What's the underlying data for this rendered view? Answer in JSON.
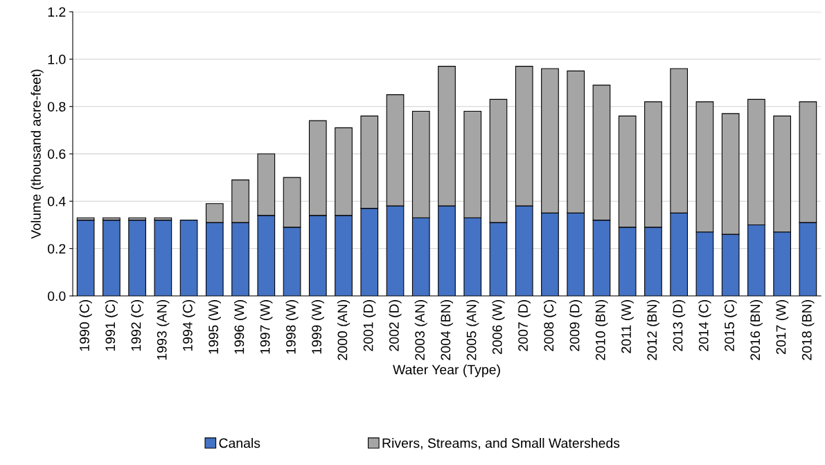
{
  "chart_data": {
    "type": "bar",
    "stacked": true,
    "xlabel": "Water Year (Type)",
    "ylabel": "Volume (thousand acre-feet)",
    "categories": [
      "1990 (C)",
      "1991 (C)",
      "1992 (C)",
      "1993 (AN)",
      "1994 (C)",
      "1995 (W)",
      "1996 (W)",
      "1997 (W)",
      "1998 (W)",
      "1999 (W)",
      "2000 (AN)",
      "2001 (D)",
      "2002 (D)",
      "2003 (AN)",
      "2004 (BN)",
      "2005 (AN)",
      "2006 (W)",
      "2007 (D)",
      "2008 (C)",
      "2009 (D)",
      "2010 (BN)",
      "2011 (W)",
      "2012 (BN)",
      "2013 (D)",
      "2014 (C)",
      "2015 (C)",
      "2016 (BN)",
      "2017 (W)",
      "2018 (BN)"
    ],
    "series": [
      {
        "name": "Canals",
        "color": "#4472c4",
        "values": [
          0.32,
          0.32,
          0.32,
          0.32,
          0.32,
          0.31,
          0.31,
          0.34,
          0.29,
          0.34,
          0.34,
          0.37,
          0.38,
          0.33,
          0.38,
          0.33,
          0.31,
          0.38,
          0.35,
          0.35,
          0.32,
          0.29,
          0.29,
          0.35,
          0.27,
          0.26,
          0.3,
          0.27,
          0.31
        ]
      },
      {
        "name": "Rivers, Streams, and Small Watersheds",
        "color": "#a5a5a5",
        "values": [
          0.01,
          0.01,
          0.01,
          0.01,
          null,
          0.08,
          0.18,
          0.26,
          0.21,
          0.4,
          0.37,
          0.39,
          0.47,
          0.45,
          0.59,
          0.45,
          0.52,
          0.59,
          0.61,
          0.6,
          0.57,
          0.47,
          0.53,
          0.61,
          0.55,
          0.51,
          0.53,
          0.49,
          0.51
        ]
      }
    ],
    "ylim": [
      0,
      1.2
    ],
    "yticks": [
      {
        "value": 0,
        "label": "0.0"
      },
      {
        "value": 0.2,
        "label": "0.2"
      },
      {
        "value": 0.4,
        "label": "0.4"
      },
      {
        "value": 0.6,
        "label": "0.6"
      },
      {
        "value": 0.8,
        "label": "0.8"
      },
      {
        "value": 1.0,
        "label": "1.0"
      },
      {
        "value": 1.2,
        "label": "1.2"
      }
    ],
    "grid": "y",
    "legend": "bottom"
  }
}
